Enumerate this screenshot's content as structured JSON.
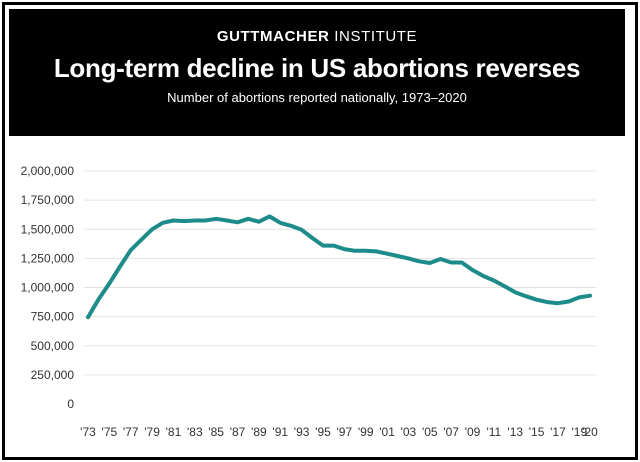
{
  "header": {
    "brand_bold": "GUTTMACHER",
    "brand_light": "INSTITUTE",
    "title": "Long-term decline in US abortions reverses",
    "subtitle": "Number of abortions reported nationally, 1973–2020"
  },
  "colors": {
    "line": "#1e8b8b",
    "header_bg": "#000000",
    "grid": "#e3e3e3"
  },
  "chart_data": {
    "type": "line",
    "title": "Long-term decline in US abortions reverses",
    "subtitle": "Number of abortions reported nationally, 1973–2020",
    "xlabel": "",
    "ylabel": "",
    "ylim": [
      0,
      2000000
    ],
    "grid": true,
    "y_ticks": [
      {
        "value": 2000000,
        "label": "2,000,000"
      },
      {
        "value": 1750000,
        "label": "1,750,000"
      },
      {
        "value": 1500000,
        "label": "1,500,000"
      },
      {
        "value": 1250000,
        "label": "1,250,000"
      },
      {
        "value": 1000000,
        "label": "1,000,000"
      },
      {
        "value": 750000,
        "label": "750,000"
      },
      {
        "value": 500000,
        "label": "500,000"
      },
      {
        "value": 250000,
        "label": "250,000"
      },
      {
        "value": 0,
        "label": "0"
      }
    ],
    "x_ticks": [
      {
        "year": 1973,
        "label": "'73"
      },
      {
        "year": 1975,
        "label": "'75"
      },
      {
        "year": 1977,
        "label": "'77"
      },
      {
        "year": 1979,
        "label": "'79"
      },
      {
        "year": 1981,
        "label": "'81"
      },
      {
        "year": 1983,
        "label": "'83"
      },
      {
        "year": 1985,
        "label": "'85"
      },
      {
        "year": 1987,
        "label": "'87"
      },
      {
        "year": 1989,
        "label": "'89"
      },
      {
        "year": 1991,
        "label": "'91"
      },
      {
        "year": 1993,
        "label": "'93"
      },
      {
        "year": 1995,
        "label": "'95"
      },
      {
        "year": 1997,
        "label": "'97"
      },
      {
        "year": 1999,
        "label": "'99"
      },
      {
        "year": 2001,
        "label": "'01"
      },
      {
        "year": 2003,
        "label": "'03"
      },
      {
        "year": 2005,
        "label": "'05"
      },
      {
        "year": 2007,
        "label": "'07"
      },
      {
        "year": 2009,
        "label": "'09"
      },
      {
        "year": 2011,
        "label": "'11"
      },
      {
        "year": 2013,
        "label": "'13"
      },
      {
        "year": 2015,
        "label": "'15"
      },
      {
        "year": 2017,
        "label": "'17"
      },
      {
        "year": 2019,
        "label": "'19"
      },
      {
        "year": 2020,
        "label": "'20"
      }
    ],
    "series": [
      {
        "name": "Abortions",
        "x": [
          1973,
          1974,
          1975,
          1976,
          1977,
          1978,
          1979,
          1980,
          1981,
          1982,
          1983,
          1984,
          1985,
          1986,
          1987,
          1988,
          1989,
          1990,
          1991,
          1992,
          1993,
          1994,
          1995,
          1996,
          1997,
          1998,
          1999,
          2000,
          2001,
          2002,
          2003,
          2004,
          2005,
          2006,
          2007,
          2008,
          2009,
          2010,
          2011,
          2012,
          2013,
          2014,
          2015,
          2016,
          2017,
          2018,
          2019,
          2020
        ],
        "values": [
          745000,
          900000,
          1035000,
          1180000,
          1320000,
          1410000,
          1500000,
          1555000,
          1575000,
          1570000,
          1575000,
          1575000,
          1590000,
          1575000,
          1560000,
          1590000,
          1565000,
          1610000,
          1555000,
          1530000,
          1495000,
          1425000,
          1360000,
          1360000,
          1330000,
          1315000,
          1315000,
          1310000,
          1290000,
          1270000,
          1250000,
          1225000,
          1210000,
          1245000,
          1215000,
          1215000,
          1150000,
          1100000,
          1060000,
          1010000,
          960000,
          925000,
          895000,
          875000,
          865000,
          880000,
          915000,
          930000
        ]
      }
    ]
  }
}
